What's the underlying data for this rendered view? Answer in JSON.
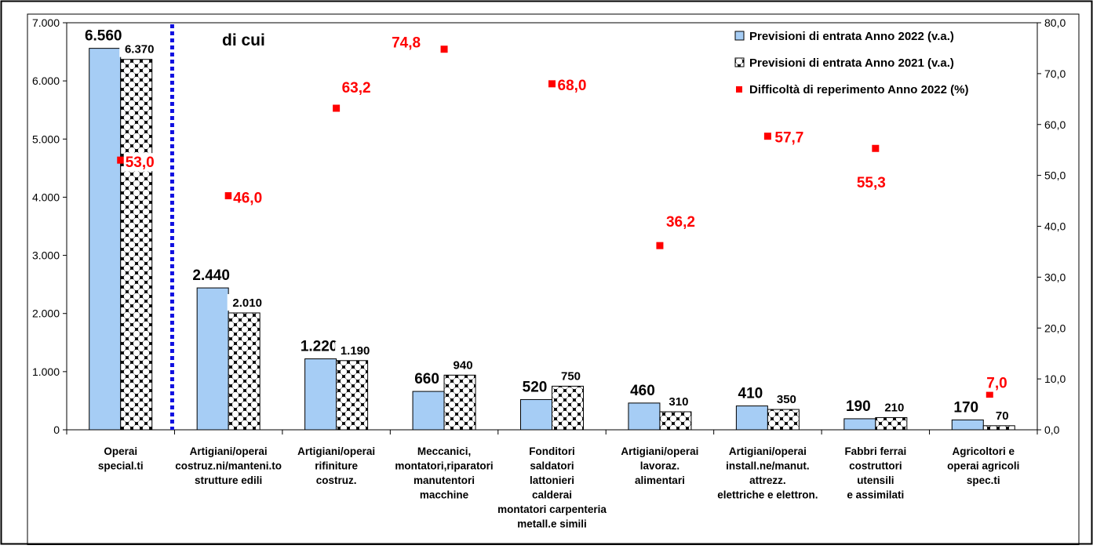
{
  "chart_data": {
    "type": "bar",
    "title": "",
    "xlabel": "",
    "ylabel": "",
    "annotation": "di cui",
    "ylim": [
      0,
      7000
    ],
    "y2lim": [
      0,
      80
    ],
    "grid": false,
    "legend_position": "top-right",
    "y_ticks": [
      "0",
      "1.000",
      "2.000",
      "3.000",
      "4.000",
      "5.000",
      "6.000",
      "7.000"
    ],
    "y2_ticks": [
      "0,0",
      "10,0",
      "20,0",
      "30,0",
      "40,0",
      "50,0",
      "60,0",
      "70,0",
      "80,0"
    ],
    "categories": [
      [
        "Operai",
        "special.ti"
      ],
      [
        "Artigiani/operai",
        "costruz.ni/manteni.to",
        "strutture edili"
      ],
      [
        "Artigiani/operai",
        "rifiniture",
        "costruz."
      ],
      [
        "Meccanici,",
        "montatori,riparatori",
        "manutentori",
        "macchine"
      ],
      [
        "Fonditori",
        "saldatori",
        "lattonieri",
        "calderai",
        "montatori carpenteria",
        "metall.e simili"
      ],
      [
        "Artigiani/operai",
        "lavoraz.",
        "alimentari"
      ],
      [
        "Artigiani/operai",
        "install.ne/manut.",
        "attrezz.",
        "elettriche e elettron."
      ],
      [
        "Fabbri ferrai",
        "costruttori",
        "utensili",
        "e assimilati"
      ],
      [
        "Agricoltori e",
        "operai agricoli",
        "spec.ti"
      ]
    ],
    "series": [
      {
        "name": "Previsioni di entrata Anno 2022 (v.a.)",
        "axis": "left",
        "kind": "bar",
        "color": "#a6cdf5",
        "values": [
          6560,
          2440,
          1220,
          660,
          520,
          460,
          410,
          190,
          170
        ],
        "labels": [
          "6.560",
          "2.440",
          "1.220",
          "660",
          "520",
          "460",
          "410",
          "190",
          "170"
        ]
      },
      {
        "name": "Previsioni di entrata Anno 2021 (v.a.)",
        "axis": "left",
        "kind": "bar-pattern",
        "color": "#000000",
        "values": [
          6370,
          2010,
          1190,
          940,
          750,
          310,
          350,
          210,
          70
        ],
        "labels": [
          "6.370",
          "2.010",
          "1.190",
          "940",
          "750",
          "310",
          "350",
          "210",
          "70"
        ]
      },
      {
        "name": "Difficoltà di reperimento Anno 2022 (%)",
        "axis": "right",
        "kind": "scatter",
        "color": "#ff0000",
        "values": [
          53.0,
          46.0,
          63.2,
          74.8,
          68.0,
          36.2,
          57.7,
          55.3,
          7.0
        ],
        "labels": [
          "53,0",
          "46,0",
          "63,2",
          "74,8",
          "68,0",
          "36,2",
          "57,7",
          "55,3",
          "7,0"
        ]
      }
    ]
  }
}
